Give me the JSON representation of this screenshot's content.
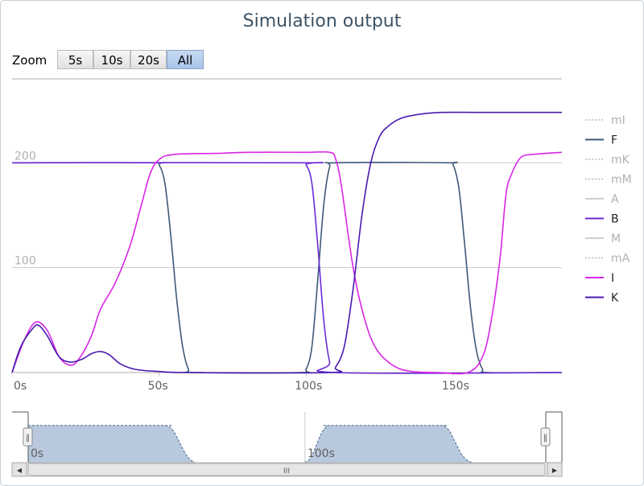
{
  "chart_data": {
    "type": "line",
    "title": "Simulation output",
    "xlabel": "",
    "ylabel": "",
    "xlim": [
      0,
      187
    ],
    "ylim": [
      0,
      280
    ],
    "x_ticks": [
      0,
      50,
      100,
      150
    ],
    "x_tick_labels": [
      "0s",
      "50s",
      "100s",
      "150s"
    ],
    "y_ticks": [
      100,
      200
    ],
    "y_tick_labels": [
      "100",
      "200"
    ],
    "grid": true,
    "legend_position": "right",
    "series": [
      {
        "name": "mI",
        "color": "#b0b0b0",
        "dashed": true,
        "visible": false,
        "points": []
      },
      {
        "name": "F",
        "color": "#3e5a78",
        "dashed": false,
        "visible": true,
        "points": [
          [
            0,
            200
          ],
          [
            48,
            200
          ],
          [
            50,
            198
          ],
          [
            52,
            180
          ],
          [
            54,
            130
          ],
          [
            56,
            70
          ],
          [
            58,
            25
          ],
          [
            60,
            3
          ],
          [
            62,
            0
          ],
          [
            98,
            0
          ],
          [
            100,
            3
          ],
          [
            102,
            25
          ],
          [
            104,
            90
          ],
          [
            106,
            160
          ],
          [
            108,
            196
          ],
          [
            110,
            200
          ],
          [
            148,
            200
          ],
          [
            150,
            198
          ],
          [
            152,
            175
          ],
          [
            154,
            120
          ],
          [
            156,
            60
          ],
          [
            158,
            20
          ],
          [
            160,
            3
          ],
          [
            162,
            0
          ],
          [
            187,
            0
          ]
        ]
      },
      {
        "name": "mK",
        "color": "#b0b0b0",
        "dashed": true,
        "visible": false,
        "points": []
      },
      {
        "name": "mM",
        "color": "#b0b0b0",
        "dashed": true,
        "visible": false,
        "points": []
      },
      {
        "name": "A",
        "color": "#b0b0b0",
        "dashed": false,
        "visible": false,
        "points": []
      },
      {
        "name": "B",
        "color": "#6a2ad6",
        "dashed": false,
        "visible": true,
        "points": [
          [
            0,
            200
          ],
          [
            98,
            200
          ],
          [
            100,
            198
          ],
          [
            102,
            180
          ],
          [
            104,
            120
          ],
          [
            106,
            50
          ],
          [
            108,
            10
          ],
          [
            110,
            0
          ],
          [
            187,
            0
          ]
        ]
      },
      {
        "name": "M",
        "color": "#b0b0b0",
        "dashed": false,
        "visible": false,
        "points": []
      },
      {
        "name": "mA",
        "color": "#b0b0b0",
        "dashed": true,
        "visible": false,
        "points": []
      },
      {
        "name": "I",
        "color": "#d826e6",
        "dashed": false,
        "visible": true,
        "points": [
          [
            0,
            0
          ],
          [
            4,
            30
          ],
          [
            8,
            48
          ],
          [
            12,
            40
          ],
          [
            16,
            15
          ],
          [
            20,
            7
          ],
          [
            23,
            14
          ],
          [
            27,
            35
          ],
          [
            30,
            60
          ],
          [
            35,
            85
          ],
          [
            40,
            120
          ],
          [
            44,
            160
          ],
          [
            47,
            190
          ],
          [
            50,
            203
          ],
          [
            55,
            208
          ],
          [
            70,
            209
          ],
          [
            80,
            210
          ],
          [
            100,
            210
          ],
          [
            108,
            210
          ],
          [
            110,
            204
          ],
          [
            112,
            178
          ],
          [
            116,
            100
          ],
          [
            120,
            50
          ],
          [
            124,
            22
          ],
          [
            130,
            6
          ],
          [
            136,
            1
          ],
          [
            145,
            0
          ],
          [
            155,
            0
          ],
          [
            160,
            15
          ],
          [
            163,
            50
          ],
          [
            166,
            110
          ],
          [
            168,
            170
          ],
          [
            170,
            190
          ],
          [
            173,
            205
          ],
          [
            177,
            208
          ],
          [
            187,
            210
          ]
        ]
      },
      {
        "name": "K",
        "color": "#4a1ab0",
        "dashed": false,
        "visible": true,
        "points": [
          [
            0,
            0
          ],
          [
            3,
            25
          ],
          [
            7,
            42
          ],
          [
            9,
            45
          ],
          [
            12,
            35
          ],
          [
            16,
            15
          ],
          [
            20,
            10
          ],
          [
            24,
            13
          ],
          [
            27,
            18
          ],
          [
            30,
            20
          ],
          [
            33,
            17
          ],
          [
            37,
            8
          ],
          [
            42,
            3
          ],
          [
            50,
            1
          ],
          [
            60,
            0
          ],
          [
            108,
            0
          ],
          [
            110,
            5
          ],
          [
            113,
            25
          ],
          [
            116,
            80
          ],
          [
            119,
            150
          ],
          [
            122,
            200
          ],
          [
            125,
            225
          ],
          [
            128,
            235
          ],
          [
            132,
            242
          ],
          [
            138,
            246
          ],
          [
            146,
            248
          ],
          [
            160,
            248
          ],
          [
            187,
            248
          ]
        ]
      }
    ]
  },
  "zoom": {
    "label": "Zoom",
    "buttons": [
      "5s",
      "10s",
      "20s",
      "All"
    ],
    "selected": "All"
  },
  "navigator": {
    "x_tick_labels": [
      "0s",
      "100s"
    ],
    "scroll_left_label": "◀",
    "scroll_right_label": "▶",
    "scroll_thumb_label": "III",
    "handle_label": "‖"
  },
  "colors": {
    "grid": "#c8c8c8",
    "axis_text": "#606060",
    "hidden_legend": "#b0b0b0",
    "navigator_fill": "#b8c9de",
    "navigator_line": "#4a6a8e"
  }
}
